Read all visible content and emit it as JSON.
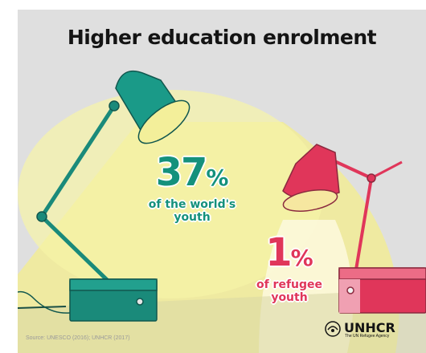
{
  "title": "Higher education enrolment",
  "stats": {
    "world": {
      "value": "37",
      "unit": "%",
      "line1": "of the world's",
      "line2": "youth"
    },
    "refugee": {
      "value": "1",
      "unit": "%",
      "line1": "of refugee",
      "line2": "youth"
    }
  },
  "source": "Source: UNESCO (2016); UNHCR (2017)",
  "logo": {
    "name": "UNHCR",
    "tagline": "The UN Refugee Agency"
  },
  "colors": {
    "background": "#dfdfdf",
    "light_beam": "#f6f08a",
    "teal_lamp": "#1a8a7a",
    "pink_lamp": "#e0365a",
    "teal_text": "#14917c",
    "pink_text": "#e0365a"
  }
}
